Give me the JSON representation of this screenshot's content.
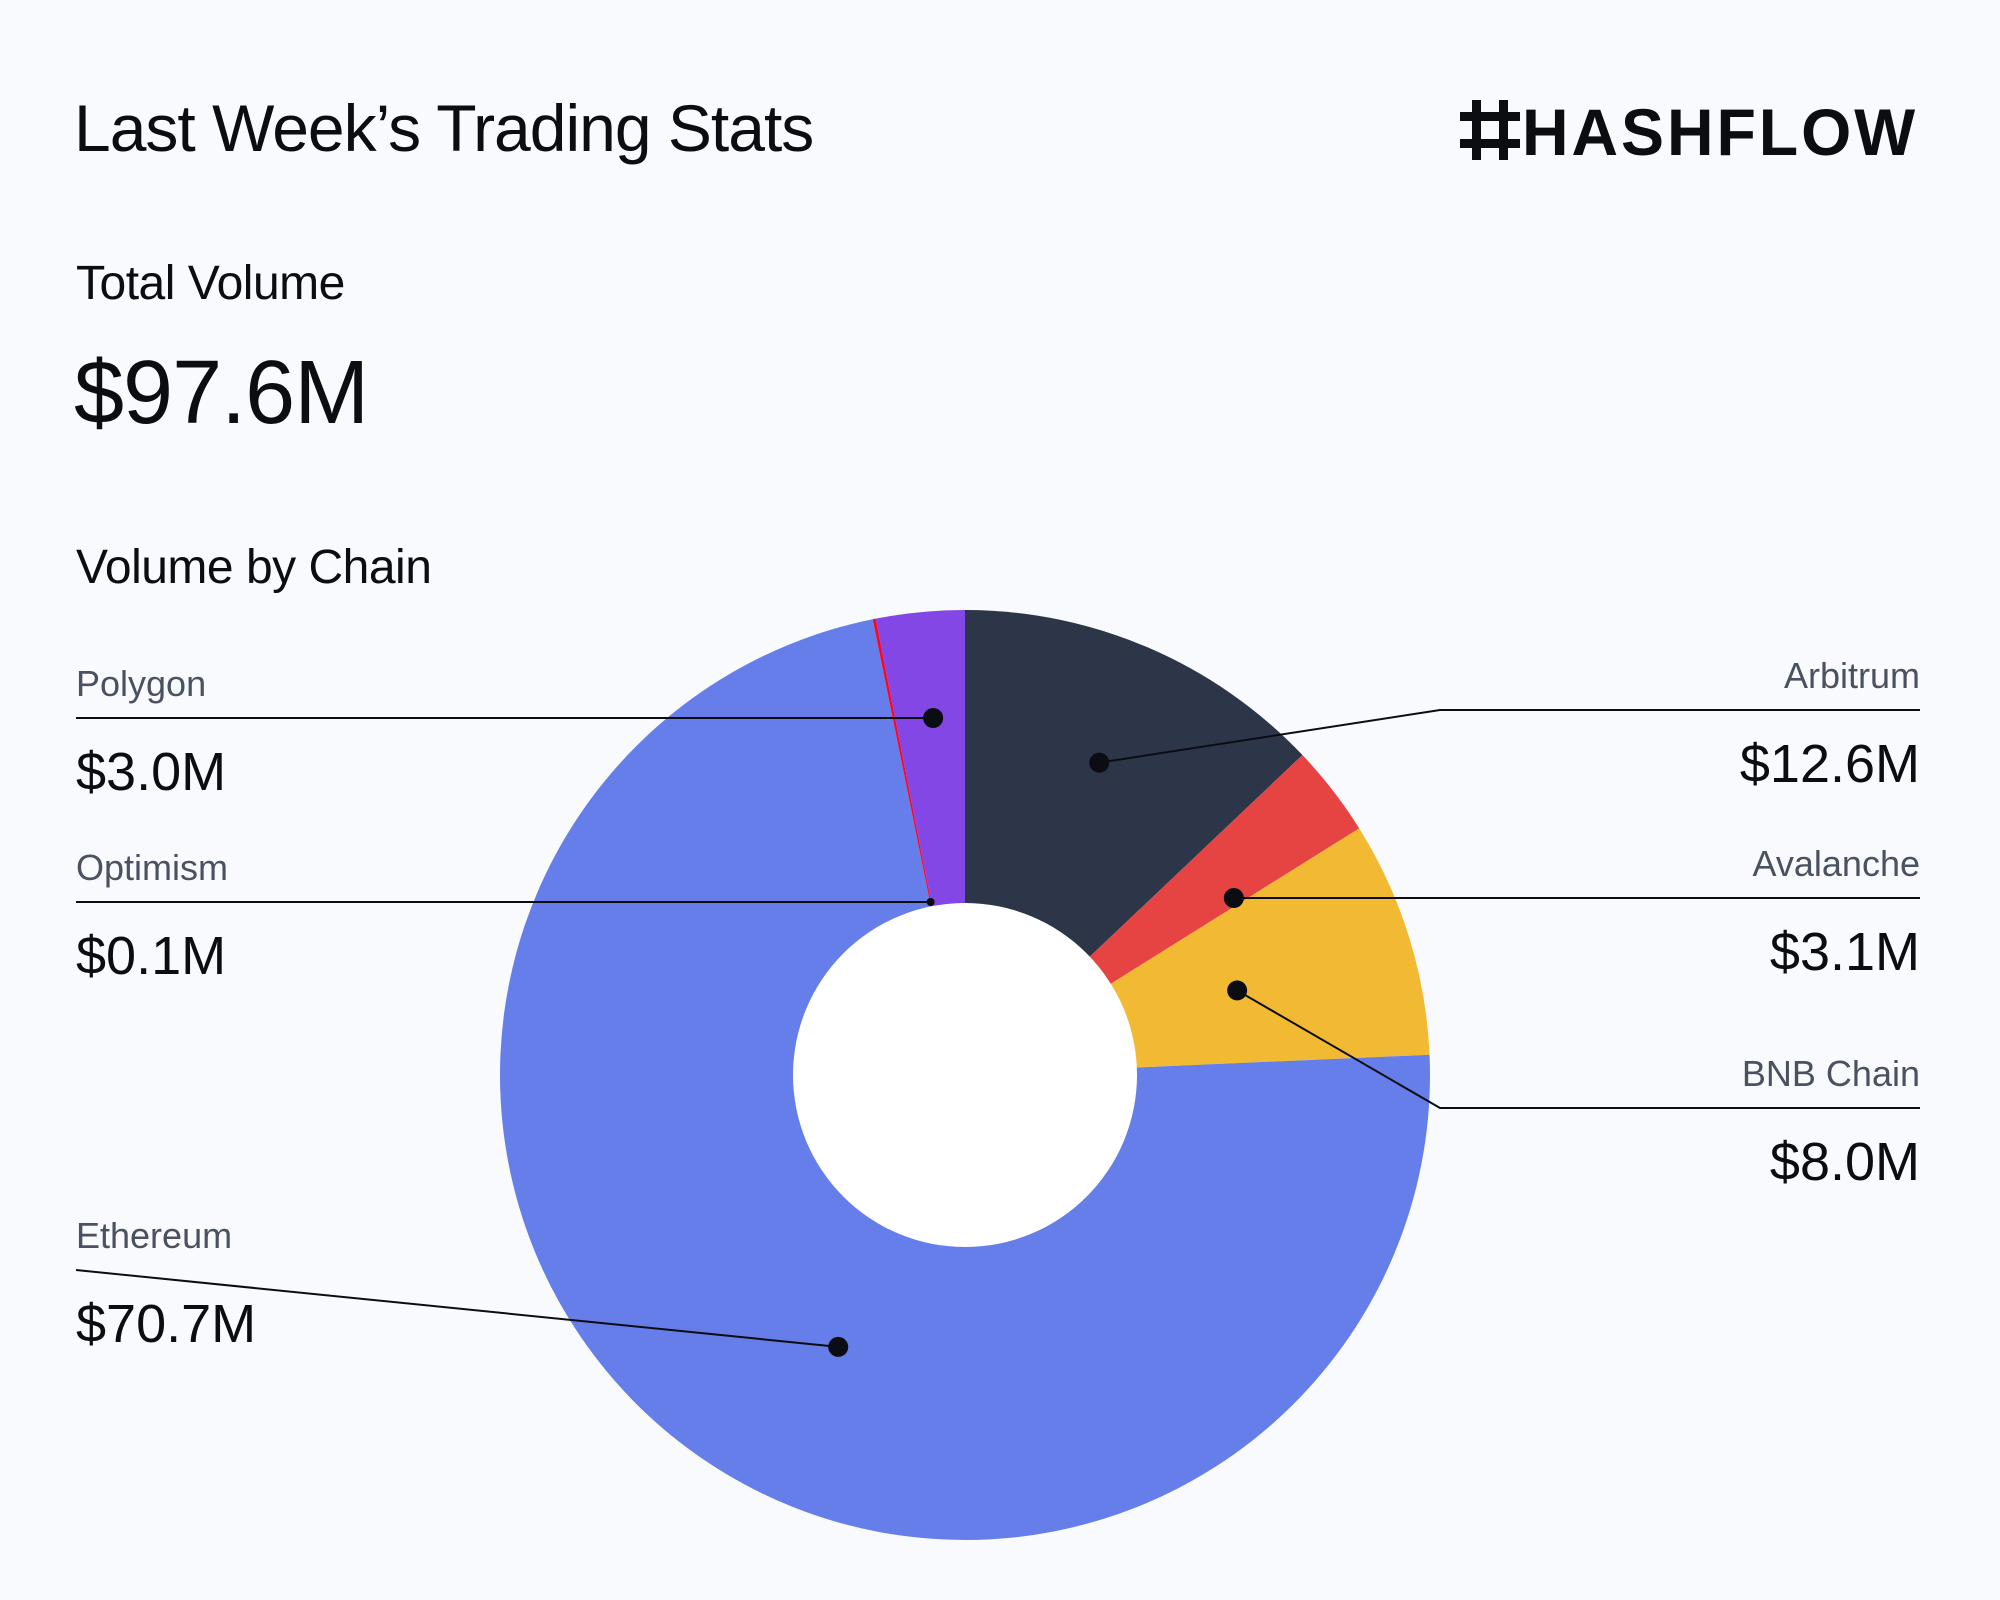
{
  "header": {
    "title": "Last Week’s Trading Stats",
    "brand": "HASHFLOW"
  },
  "summary": {
    "total_label": "Total Volume",
    "total_value": "$97.6M"
  },
  "section": {
    "label": "Volume by Chain"
  },
  "chart_data": {
    "type": "pie",
    "variant": "donut",
    "title": "Volume by Chain",
    "unit": "$M",
    "start_angle_deg": 0,
    "direction": "clockwise",
    "slices": [
      {
        "name": "Arbitrum",
        "value": 12.6,
        "label": "$12.6M",
        "color": "#2d3548",
        "side": "right"
      },
      {
        "name": "Avalanche",
        "value": 3.1,
        "label": "$3.1M",
        "color": "#e54443",
        "side": "right"
      },
      {
        "name": "BNB Chain",
        "value": 8.0,
        "label": "$8.0M",
        "color": "#f2ba33",
        "side": "right"
      },
      {
        "name": "Ethereum",
        "value": 70.7,
        "label": "$70.7M",
        "color": "#667eea",
        "side": "left"
      },
      {
        "name": "Optimism",
        "value": 0.1,
        "label": "$0.1M",
        "color": "#ff0420",
        "side": "left"
      },
      {
        "name": "Polygon",
        "value": 3.0,
        "label": "$3.0M",
        "color": "#8247e5",
        "side": "left"
      }
    ]
  }
}
